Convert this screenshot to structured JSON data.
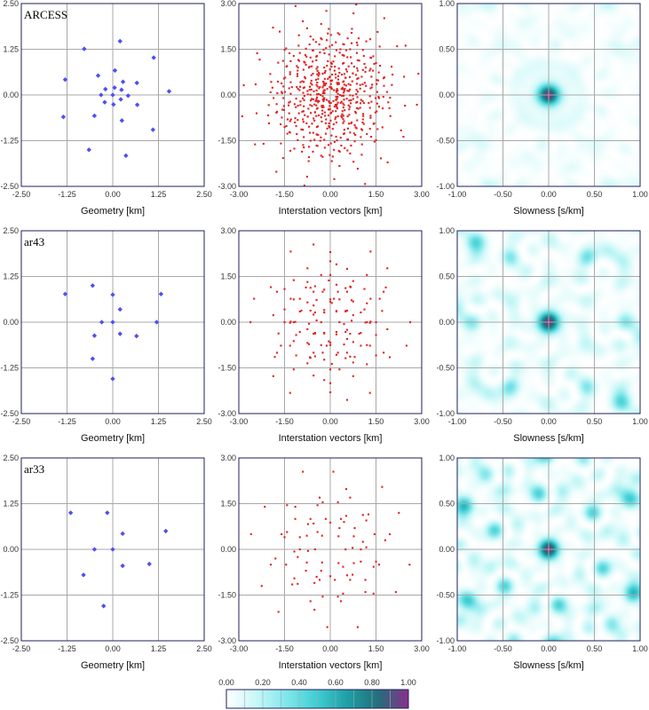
{
  "colors": {
    "geometry_marker": "#4f4ff0",
    "vector_marker": "#e02222",
    "frame": "#1f1f5a",
    "grid": "#a8a8a8",
    "colormap": [
      "#ffffff",
      "#c6f7f7",
      "#7fe6ea",
      "#3fcdd2",
      "#1e9ea4",
      "#226f7a",
      "#8a2f8a"
    ]
  },
  "colorbar": {
    "ticks": [
      "0.00",
      "0.20",
      "0.40",
      "0.60",
      "0.80",
      "1.00"
    ],
    "range": [
      0,
      1
    ]
  },
  "chart_data": [
    {
      "type": "scatter",
      "panel": "geometry",
      "label": "ARCESS",
      "xlabel": "Geometry [km]",
      "xlim": [
        -2.5,
        2.5
      ],
      "ylim": [
        -2.5,
        2.5
      ],
      "xticks": [
        "-2.50",
        "-1.25",
        "0.00",
        "1.25",
        "2.50"
      ],
      "yticks": [
        "2.50",
        "1.25",
        "0.00",
        "-1.25",
        "-2.50"
      ],
      "points": [
        [
          0.0,
          0.0
        ],
        [
          0.28,
          0.36
        ],
        [
          0.05,
          0.2
        ],
        [
          -0.2,
          0.16
        ],
        [
          -0.32,
          0.0
        ],
        [
          -0.22,
          -0.2
        ],
        [
          0.02,
          -0.26
        ],
        [
          0.22,
          -0.12
        ],
        [
          0.24,
          0.14
        ],
        [
          0.42,
          -0.02
        ],
        [
          0.2,
          1.47
        ],
        [
          -0.78,
          1.26
        ],
        [
          -1.3,
          0.42
        ],
        [
          -1.35,
          -0.6
        ],
        [
          -0.65,
          -1.5
        ],
        [
          0.36,
          -1.66
        ],
        [
          1.1,
          -0.95
        ],
        [
          1.54,
          0.1
        ],
        [
          1.12,
          1.02
        ],
        [
          0.66,
          0.33
        ],
        [
          0.67,
          -0.27
        ],
        [
          -0.4,
          0.53
        ],
        [
          0.06,
          0.67
        ],
        [
          -0.5,
          -0.57
        ],
        [
          0.25,
          -0.7
        ]
      ]
    },
    {
      "type": "scatter",
      "panel": "interstation",
      "xlabel": "Interstation vectors [km]",
      "xlim": [
        -3,
        3
      ],
      "ylim": [
        -3,
        3
      ],
      "xticks": [
        "-3.00",
        "-1.50",
        "0.00",
        "1.50",
        "3.00"
      ],
      "yticks": [
        "3.00",
        "1.50",
        "0.00",
        "-1.50",
        "-3.00"
      ],
      "source_geometry": 0
    },
    {
      "type": "heatmap",
      "panel": "array-response",
      "xlabel": "Slowness [s/km]",
      "xlim": [
        -1,
        1
      ],
      "ylim": [
        -1,
        1
      ],
      "xticks": [
        "-1.00",
        "-0.50",
        "0.00",
        "0.50",
        "1.00"
      ],
      "yticks": [
        "1.00",
        "0.50",
        "0.00",
        "-0.50",
        "-1.00"
      ],
      "source_geometry": 0
    },
    {
      "type": "scatter",
      "panel": "geometry",
      "label": "ar43",
      "xlabel": "Geometry [km]",
      "xlim": [
        -2.5,
        2.5
      ],
      "ylim": [
        -2.5,
        2.5
      ],
      "xticks": [
        "-2.50",
        "-1.25",
        "0.00",
        "1.25",
        "2.50"
      ],
      "yticks": [
        "2.50",
        "1.25",
        "0.00",
        "-1.25",
        "-2.50"
      ],
      "points": [
        [
          0.0,
          0.0
        ],
        [
          0.0,
          0.75
        ],
        [
          0.2,
          0.35
        ],
        [
          0.2,
          -0.32
        ],
        [
          -0.3,
          0.0
        ],
        [
          -0.5,
          -0.37
        ],
        [
          0.65,
          -0.38
        ],
        [
          -0.55,
          1.0
        ],
        [
          1.32,
          0.77
        ],
        [
          1.2,
          0.0
        ],
        [
          -1.3,
          0.77
        ],
        [
          -0.55,
          -1.0
        ],
        [
          0.0,
          -1.55
        ]
      ]
    },
    {
      "type": "scatter",
      "panel": "interstation",
      "xlabel": "Interstation vectors [km]",
      "xlim": [
        -3,
        3
      ],
      "ylim": [
        -3,
        3
      ],
      "xticks": [
        "-3.00",
        "-1.50",
        "0.00",
        "1.50",
        "3.00"
      ],
      "yticks": [
        "3.00",
        "1.50",
        "0.00",
        "-1.50",
        "-3.00"
      ],
      "source_geometry": 3
    },
    {
      "type": "heatmap",
      "panel": "array-response",
      "xlabel": "Slowness [s/km]",
      "xlim": [
        -1,
        1
      ],
      "ylim": [
        -1,
        1
      ],
      "xticks": [
        "-1.00",
        "-0.50",
        "0.00",
        "0.50",
        "1.00"
      ],
      "yticks": [
        "1.00",
        "0.50",
        "0.00",
        "-0.50",
        "-1.00"
      ],
      "source_geometry": 3
    },
    {
      "type": "scatter",
      "panel": "geometry",
      "label": "ar33",
      "xlabel": "Geometry [km]",
      "xlim": [
        -2.5,
        2.5
      ],
      "ylim": [
        -2.5,
        2.5
      ],
      "xticks": [
        "-2.50",
        "-1.25",
        "0.00",
        "1.25",
        "2.50"
      ],
      "yticks": [
        "2.50",
        "1.25",
        "0.00",
        "-1.25",
        "-2.50"
      ],
      "points": [
        [
          0.0,
          0.0
        ],
        [
          -0.15,
          1.0
        ],
        [
          0.27,
          0.43
        ],
        [
          0.27,
          -0.45
        ],
        [
          -0.5,
          0.0
        ],
        [
          -0.8,
          -0.7
        ],
        [
          1.0,
          -0.4
        ],
        [
          1.45,
          0.5
        ],
        [
          -1.15,
          1.0
        ],
        [
          -0.25,
          -1.55
        ]
      ]
    },
    {
      "type": "scatter",
      "panel": "interstation",
      "xlabel": "Interstation vectors [km]",
      "xlim": [
        -3,
        3
      ],
      "ylim": [
        -3,
        3
      ],
      "xticks": [
        "-3.00",
        "-1.50",
        "0.00",
        "1.50",
        "3.00"
      ],
      "yticks": [
        "3.00",
        "1.50",
        "0.00",
        "-1.50",
        "-3.00"
      ],
      "source_geometry": 6
    },
    {
      "type": "heatmap",
      "panel": "array-response",
      "xlabel": "Slowness [s/km]",
      "xlim": [
        -1,
        1
      ],
      "ylim": [
        -1,
        1
      ],
      "xticks": [
        "-1.00",
        "-0.50",
        "0.00",
        "0.50",
        "1.00"
      ],
      "yticks": [
        "1.00",
        "0.50",
        "0.00",
        "-0.50",
        "-1.00"
      ],
      "source_geometry": 6
    }
  ]
}
